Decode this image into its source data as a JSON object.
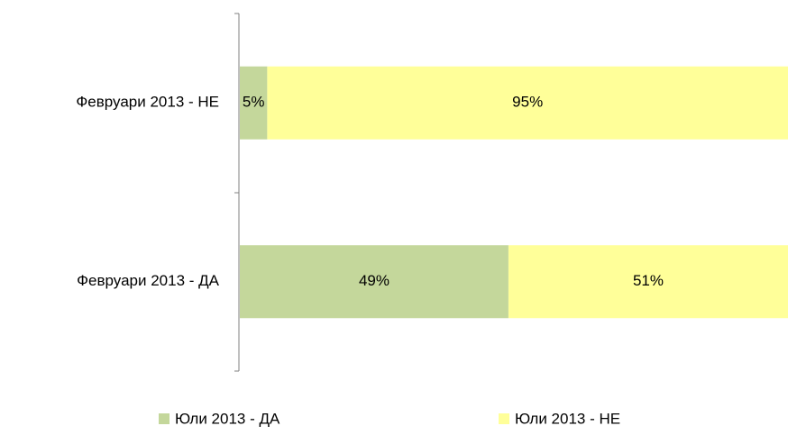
{
  "chart_data": {
    "type": "bar",
    "orientation": "horizontal",
    "stacked": true,
    "categories": [
      "Февруари 2013 - НЕ",
      "Февруари 2013 - ДА"
    ],
    "series": [
      {
        "name": "Юли 2013 - ДА",
        "color": "#c4d79b",
        "values": [
          5,
          49
        ],
        "value_labels": [
          "5%",
          "49%"
        ]
      },
      {
        "name": "Юли 2013 - НЕ",
        "color": "#ffff99",
        "values": [
          95,
          51
        ],
        "value_labels": [
          "95%",
          "51%"
        ]
      }
    ],
    "legend": "bottom"
  }
}
